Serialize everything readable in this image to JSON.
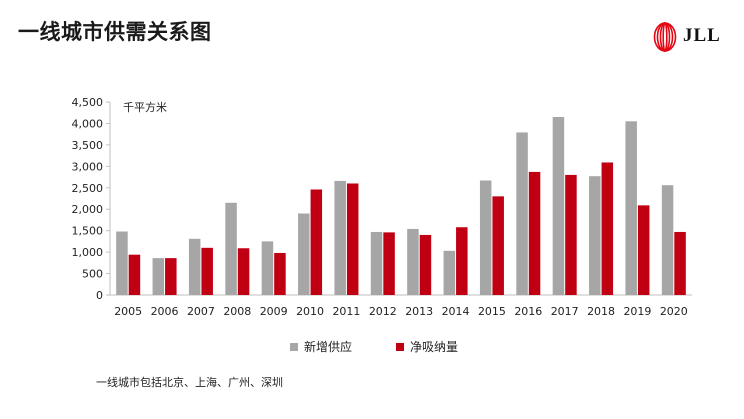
{
  "title": "一线城市供需关系图",
  "logo": {
    "text": "JLL",
    "icon": "jll-flame-logo-icon",
    "color": "#E30613"
  },
  "footnote": "一线城市包括北京、上海、广州、深圳",
  "chart_data": {
    "type": "bar",
    "title": "",
    "unit_label": "千平方米",
    "xlabel": "",
    "ylabel": "",
    "ylim": [
      0,
      4500
    ],
    "yticks": [
      0,
      500,
      1000,
      1500,
      2000,
      2500,
      3000,
      3500,
      4000,
      4500
    ],
    "ytick_labels": [
      "0",
      "500",
      "1,000",
      "1,500",
      "2,000",
      "2,500",
      "3,000",
      "3,500",
      "4,000",
      "4,500"
    ],
    "grid": false,
    "legend_position": "bottom",
    "categories": [
      "2005",
      "2006",
      "2007",
      "2008",
      "2009",
      "2010",
      "2011",
      "2012",
      "2013",
      "2014",
      "2015",
      "2016",
      "2017",
      "2018",
      "2019",
      "2020"
    ],
    "series": [
      {
        "name": "新增供应",
        "color": "#A6A6A6",
        "values": [
          1480,
          860,
          1310,
          2150,
          1250,
          1900,
          2660,
          1470,
          1540,
          1030,
          2670,
          3790,
          4150,
          2770,
          4050,
          2560
        ]
      },
      {
        "name": "净吸纳量",
        "color": "#C00012",
        "values": [
          940,
          860,
          1100,
          1090,
          980,
          2460,
          2600,
          1460,
          1400,
          1580,
          2300,
          2870,
          2800,
          3090,
          2090,
          1470
        ]
      }
    ]
  }
}
